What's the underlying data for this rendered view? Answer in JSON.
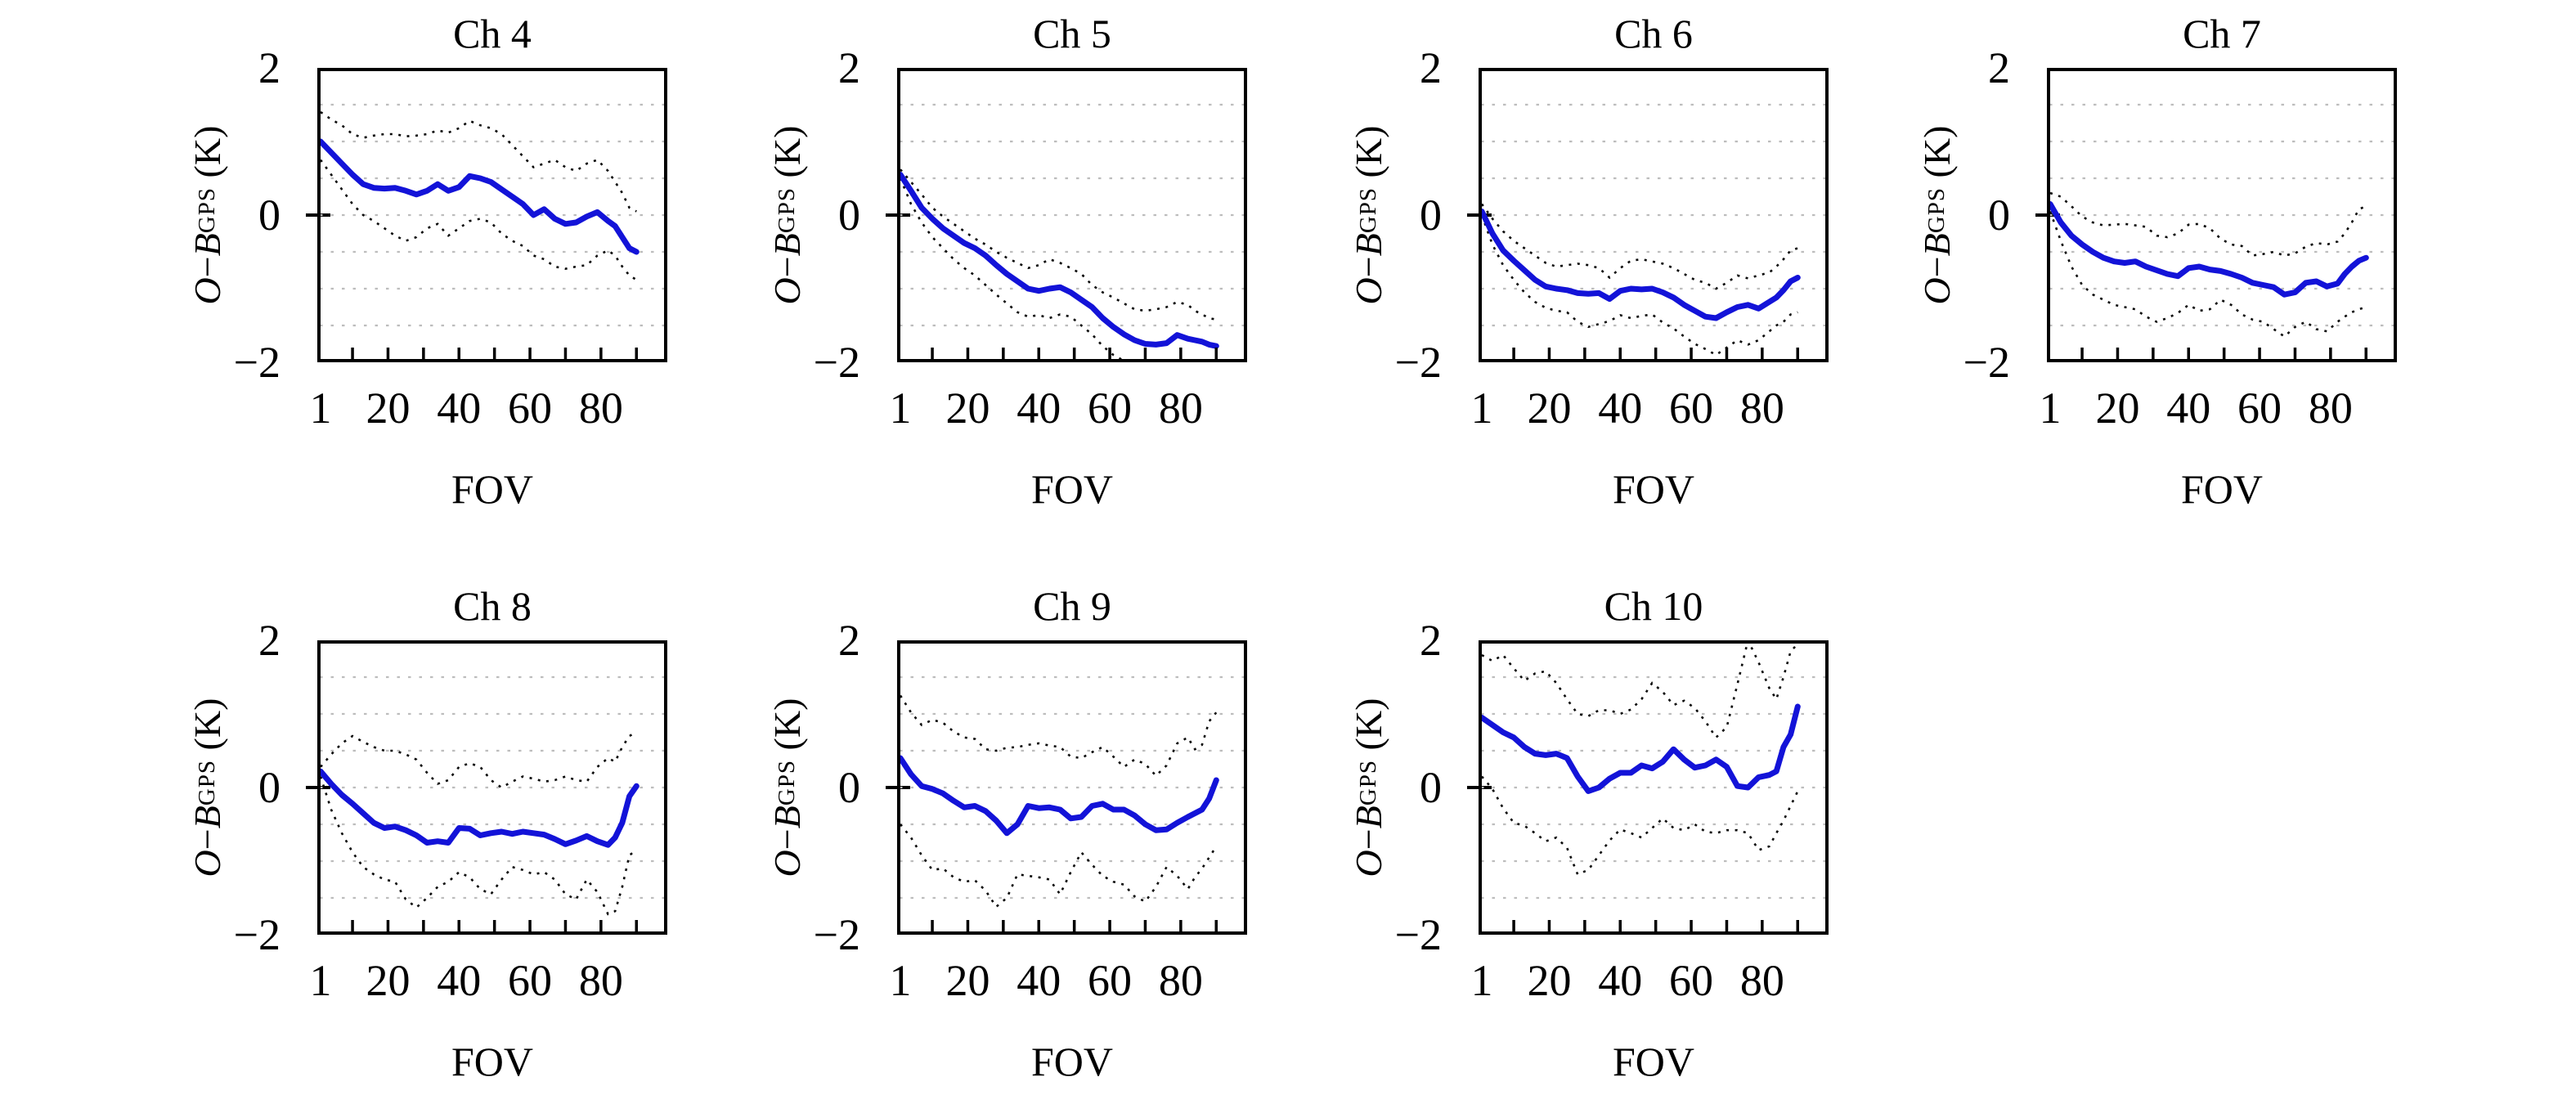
{
  "figure": {
    "background": "#ffffff",
    "colors": {
      "mean_line": "#1313d8",
      "envelope_line": "#0a0a0a",
      "gridline": "#bdbdbd",
      "axis": "#000000"
    }
  },
  "chart_data": {
    "type": "line",
    "xlabel": "FOV",
    "ylabel_text": "O−B^GPS (K)",
    "ylabel_parts": {
      "var1": "O",
      "minus": "−",
      "var2": "B",
      "sup": "GPS",
      "unit": "(K)"
    },
    "ylim": [
      -2,
      2
    ],
    "xlim": [
      1,
      99
    ],
    "ytick_labels": [
      "2",
      "0",
      "−2"
    ],
    "ytick_values": [
      2,
      0,
      -2
    ],
    "xtick_labels": [
      "1",
      "20",
      "40",
      "60",
      "80"
    ],
    "xtick_label_values": [
      1,
      20,
      40,
      60,
      80
    ],
    "xticks_minor": [
      10,
      20,
      30,
      40,
      50,
      60,
      70,
      80,
      90
    ],
    "grid_y_step": 0.5,
    "grid_y_lines": [
      1.5,
      1.0,
      0.5,
      0,
      -0.5,
      -1.0,
      -1.5
    ],
    "legend": "none",
    "series_style": {
      "mean": "solid blue",
      "upper": "dotted black",
      "lower": "dotted black"
    },
    "x": [
      1,
      4,
      7,
      10,
      13,
      16,
      19,
      22,
      25,
      28,
      31,
      34,
      37,
      40,
      43,
      46,
      49,
      52,
      55,
      58,
      61,
      64,
      67,
      70,
      73,
      76,
      79,
      82,
      84,
      86,
      88,
      90
    ],
    "panels": [
      {
        "title": "Ch 4",
        "mean": [
          1.0,
          0.85,
          0.7,
          0.55,
          0.42,
          0.37,
          0.36,
          0.37,
          0.33,
          0.28,
          0.33,
          0.42,
          0.33,
          0.38,
          0.53,
          0.5,
          0.45,
          0.35,
          0.25,
          0.15,
          0.0,
          0.08,
          -0.05,
          -0.12,
          -0.1,
          -0.02,
          0.04,
          -0.08,
          -0.15,
          -0.3,
          -0.45,
          -0.5
        ],
        "upper": [
          1.4,
          1.3,
          1.22,
          1.1,
          1.05,
          1.08,
          1.1,
          1.1,
          1.07,
          1.08,
          1.1,
          1.15,
          1.12,
          1.18,
          1.28,
          1.22,
          1.18,
          1.1,
          0.95,
          0.8,
          0.65,
          0.7,
          0.75,
          0.65,
          0.6,
          0.7,
          0.75,
          0.6,
          0.45,
          0.3,
          0.1,
          0.05
        ],
        "lower": [
          0.75,
          0.55,
          0.35,
          0.15,
          0.0,
          -0.08,
          -0.18,
          -0.28,
          -0.35,
          -0.3,
          -0.18,
          -0.12,
          -0.28,
          -0.18,
          -0.08,
          -0.05,
          -0.1,
          -0.25,
          -0.35,
          -0.42,
          -0.55,
          -0.6,
          -0.7,
          -0.73,
          -0.7,
          -0.68,
          -0.55,
          -0.48,
          -0.55,
          -0.7,
          -0.82,
          -0.88
        ]
      },
      {
        "title": "Ch 5",
        "mean": [
          0.55,
          0.33,
          0.1,
          -0.05,
          -0.18,
          -0.28,
          -0.38,
          -0.45,
          -0.55,
          -0.68,
          -0.8,
          -0.9,
          -1.0,
          -1.03,
          -1.0,
          -0.98,
          -1.05,
          -1.15,
          -1.25,
          -1.4,
          -1.52,
          -1.62,
          -1.7,
          -1.75,
          -1.76,
          -1.74,
          -1.63,
          -1.68,
          -1.7,
          -1.72,
          -1.76,
          -1.78
        ],
        "upper": [
          0.62,
          0.45,
          0.28,
          0.1,
          -0.02,
          -0.12,
          -0.22,
          -0.32,
          -0.4,
          -0.5,
          -0.58,
          -0.65,
          -0.72,
          -0.68,
          -0.6,
          -0.65,
          -0.72,
          -0.8,
          -0.95,
          -1.05,
          -1.12,
          -1.2,
          -1.28,
          -1.3,
          -1.28,
          -1.25,
          -1.18,
          -1.22,
          -1.3,
          -1.35,
          -1.4,
          -1.42
        ],
        "lower": [
          0.5,
          0.15,
          -0.1,
          -0.3,
          -0.45,
          -0.6,
          -0.72,
          -0.82,
          -0.95,
          -1.08,
          -1.2,
          -1.32,
          -1.38,
          -1.36,
          -1.4,
          -1.35,
          -1.38,
          -1.5,
          -1.62,
          -1.78,
          -1.9,
          -1.98,
          -2.05,
          -2.1,
          -2.1,
          -2.05,
          -2.02,
          -2.04,
          -2.0,
          -1.98,
          -2.04,
          -2.1
        ]
      },
      {
        "title": "Ch 6",
        "mean": [
          0.05,
          -0.25,
          -0.48,
          -0.62,
          -0.75,
          -0.88,
          -0.97,
          -1.0,
          -1.02,
          -1.06,
          -1.07,
          -1.06,
          -1.14,
          -1.03,
          -1.0,
          -1.01,
          -1.0,
          -1.05,
          -1.12,
          -1.22,
          -1.3,
          -1.38,
          -1.4,
          -1.32,
          -1.25,
          -1.22,
          -1.27,
          -1.18,
          -1.12,
          -1.02,
          -0.9,
          -0.85
        ],
        "upper": [
          0.15,
          -0.05,
          -0.22,
          -0.35,
          -0.45,
          -0.55,
          -0.65,
          -0.7,
          -0.68,
          -0.66,
          -0.68,
          -0.72,
          -0.85,
          -0.72,
          -0.62,
          -0.6,
          -0.63,
          -0.66,
          -0.72,
          -0.8,
          -0.88,
          -0.92,
          -1.0,
          -0.92,
          -0.82,
          -0.86,
          -0.82,
          -0.78,
          -0.7,
          -0.6,
          -0.48,
          -0.45
        ],
        "lower": [
          0.0,
          -0.4,
          -0.68,
          -0.88,
          -1.05,
          -1.18,
          -1.26,
          -1.3,
          -1.32,
          -1.45,
          -1.52,
          -1.48,
          -1.44,
          -1.36,
          -1.4,
          -1.37,
          -1.35,
          -1.46,
          -1.54,
          -1.65,
          -1.75,
          -1.82,
          -1.9,
          -1.8,
          -1.7,
          -1.76,
          -1.7,
          -1.58,
          -1.5,
          -1.45,
          -1.35,
          -1.32
        ]
      },
      {
        "title": "Ch 7",
        "mean": [
          0.15,
          -0.1,
          -0.28,
          -0.4,
          -0.5,
          -0.58,
          -0.63,
          -0.65,
          -0.63,
          -0.7,
          -0.75,
          -0.8,
          -0.83,
          -0.72,
          -0.7,
          -0.74,
          -0.76,
          -0.8,
          -0.85,
          -0.92,
          -0.95,
          -0.98,
          -1.08,
          -1.05,
          -0.92,
          -0.9,
          -0.97,
          -0.93,
          -0.8,
          -0.7,
          -0.62,
          -0.58
        ],
        "upper": [
          0.3,
          0.25,
          0.12,
          -0.02,
          -0.1,
          -0.14,
          -0.13,
          -0.12,
          -0.14,
          -0.16,
          -0.28,
          -0.3,
          -0.25,
          -0.13,
          -0.12,
          -0.18,
          -0.32,
          -0.4,
          -0.42,
          -0.55,
          -0.53,
          -0.5,
          -0.55,
          -0.52,
          -0.43,
          -0.38,
          -0.4,
          -0.36,
          -0.25,
          -0.1,
          0.08,
          0.12
        ],
        "lower": [
          0.05,
          -0.35,
          -0.7,
          -0.95,
          -1.08,
          -1.15,
          -1.22,
          -1.25,
          -1.28,
          -1.38,
          -1.45,
          -1.4,
          -1.33,
          -1.22,
          -1.3,
          -1.28,
          -1.15,
          -1.22,
          -1.35,
          -1.42,
          -1.45,
          -1.55,
          -1.65,
          -1.52,
          -1.45,
          -1.55,
          -1.58,
          -1.45,
          -1.38,
          -1.32,
          -1.28,
          -1.25
        ]
      },
      {
        "title": "Ch 8",
        "mean": [
          0.22,
          0.05,
          -0.1,
          -0.22,
          -0.35,
          -0.48,
          -0.55,
          -0.53,
          -0.58,
          -0.65,
          -0.75,
          -0.73,
          -0.75,
          -0.55,
          -0.56,
          -0.65,
          -0.62,
          -0.6,
          -0.63,
          -0.6,
          -0.62,
          -0.64,
          -0.7,
          -0.77,
          -0.72,
          -0.66,
          -0.73,
          -0.78,
          -0.68,
          -0.48,
          -0.12,
          0.02
        ],
        "upper": [
          0.28,
          0.45,
          0.6,
          0.7,
          0.62,
          0.55,
          0.5,
          0.5,
          0.45,
          0.38,
          0.2,
          0.05,
          0.1,
          0.28,
          0.33,
          0.28,
          0.1,
          0.0,
          0.08,
          0.15,
          0.12,
          0.08,
          0.1,
          0.15,
          0.1,
          0.08,
          0.28,
          0.4,
          0.35,
          0.55,
          0.7,
          0.75
        ],
        "lower": [
          0.15,
          -0.3,
          -0.62,
          -0.88,
          -1.08,
          -1.18,
          -1.25,
          -1.28,
          -1.52,
          -1.63,
          -1.5,
          -1.35,
          -1.28,
          -1.15,
          -1.22,
          -1.38,
          -1.45,
          -1.25,
          -1.08,
          -1.12,
          -1.18,
          -1.15,
          -1.25,
          -1.45,
          -1.52,
          -1.25,
          -1.42,
          -1.72,
          -1.68,
          -1.35,
          -0.92,
          -0.85
        ]
      },
      {
        "title": "Ch 9",
        "mean": [
          0.4,
          0.18,
          0.02,
          -0.02,
          -0.08,
          -0.18,
          -0.27,
          -0.25,
          -0.32,
          -0.45,
          -0.62,
          -0.5,
          -0.25,
          -0.28,
          -0.27,
          -0.3,
          -0.42,
          -0.4,
          -0.25,
          -0.22,
          -0.3,
          -0.3,
          -0.38,
          -0.5,
          -0.58,
          -0.57,
          -0.48,
          -0.4,
          -0.35,
          -0.3,
          -0.15,
          0.1
        ],
        "upper": [
          1.25,
          1.02,
          0.85,
          0.92,
          0.88,
          0.76,
          0.68,
          0.66,
          0.52,
          0.5,
          0.54,
          0.55,
          0.58,
          0.6,
          0.57,
          0.55,
          0.42,
          0.4,
          0.48,
          0.55,
          0.42,
          0.28,
          0.38,
          0.32,
          0.16,
          0.3,
          0.6,
          0.68,
          0.52,
          0.58,
          0.9,
          1.02
        ],
        "lower": [
          -0.5,
          -0.68,
          -0.92,
          -1.12,
          -1.1,
          -1.22,
          -1.28,
          -1.26,
          -1.4,
          -1.62,
          -1.5,
          -1.18,
          -1.2,
          -1.22,
          -1.25,
          -1.45,
          -1.15,
          -0.88,
          -1.05,
          -1.2,
          -1.28,
          -1.32,
          -1.48,
          -1.55,
          -1.35,
          -1.08,
          -1.2,
          -1.38,
          -1.22,
          -1.1,
          -0.95,
          -0.8
        ]
      },
      {
        "title": "Ch 10",
        "mean": [
          0.95,
          0.85,
          0.75,
          0.68,
          0.55,
          0.46,
          0.44,
          0.46,
          0.4,
          0.15,
          -0.05,
          0.0,
          0.12,
          0.2,
          0.2,
          0.3,
          0.26,
          0.35,
          0.52,
          0.38,
          0.27,
          0.3,
          0.38,
          0.28,
          0.02,
          0.0,
          0.14,
          0.17,
          0.22,
          0.55,
          0.72,
          1.1
        ],
        "upper": [
          1.8,
          1.72,
          1.8,
          1.62,
          1.45,
          1.55,
          1.58,
          1.42,
          1.2,
          1.0,
          0.97,
          1.05,
          1.05,
          1.0,
          1.06,
          1.2,
          1.42,
          1.3,
          1.12,
          1.18,
          1.08,
          0.9,
          0.68,
          0.82,
          1.4,
          2.0,
          1.7,
          1.35,
          1.2,
          1.5,
          1.85,
          1.95
        ],
        "lower": [
          0.15,
          -0.02,
          -0.28,
          -0.48,
          -0.52,
          -0.62,
          -0.73,
          -0.68,
          -0.82,
          -1.18,
          -1.12,
          -0.92,
          -0.72,
          -0.57,
          -0.62,
          -0.68,
          -0.55,
          -0.42,
          -0.55,
          -0.58,
          -0.5,
          -0.6,
          -0.62,
          -0.58,
          -0.58,
          -0.62,
          -0.85,
          -0.8,
          -0.62,
          -0.45,
          -0.25,
          -0.05
        ]
      }
    ]
  }
}
